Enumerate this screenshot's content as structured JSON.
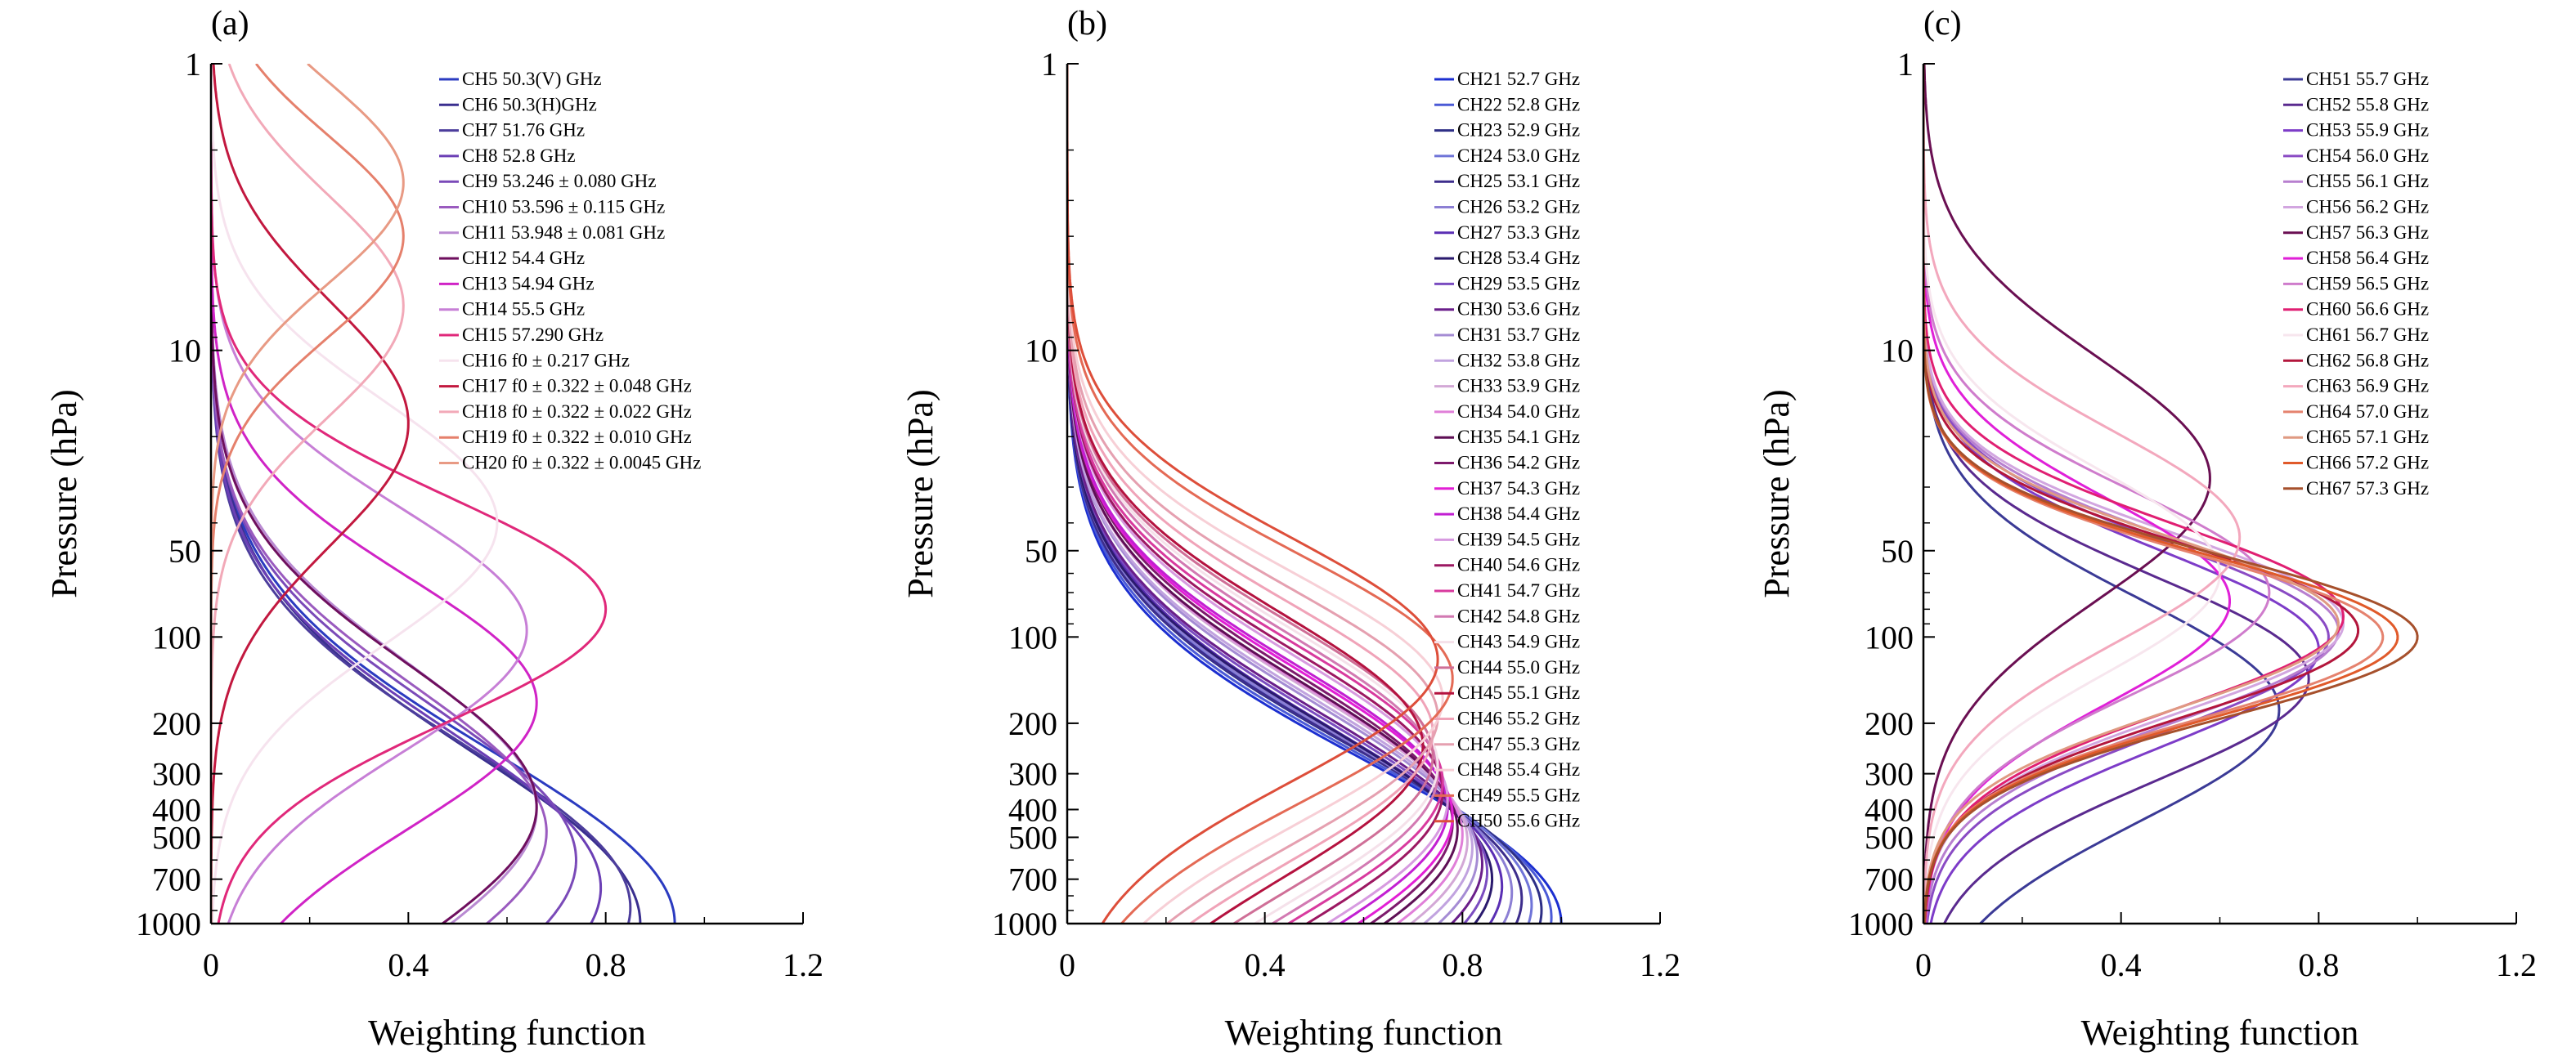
{
  "chart_data": [
    {
      "type": "line",
      "panel_label": "(a)",
      "xlabel": "Weighting function",
      "ylabel": "Pressure (hPa)",
      "xlim": [
        0,
        1.2
      ],
      "ylim": [
        1000,
        1
      ],
      "yscale": "log",
      "yreverse": true,
      "xticks": [
        "0",
        "0.4",
        "0.8",
        "1.2"
      ],
      "yticks": [
        "1",
        "10",
        "50",
        "100",
        "200",
        "300",
        "400",
        "500",
        "700",
        "1000"
      ],
      "ytick_values": [
        1,
        10,
        50,
        100,
        200,
        300,
        400,
        500,
        700,
        1000
      ],
      "legend_position": "top-right",
      "series": [
        {
          "name": "CH5 50.3(V) GHz",
          "color": "#2b3bc0",
          "peak_p": 1000,
          "peak_w": 0.94,
          "width": 0.85
        },
        {
          "name": "CH6 50.3(H)GHz",
          "color": "#3a2f8f",
          "peak_p": 1000,
          "peak_w": 0.87,
          "width": 0.85
        },
        {
          "name": "CH7 51.76 GHz",
          "color": "#4c3d9c",
          "peak_p": 880,
          "peak_w": 0.85,
          "width": 0.8
        },
        {
          "name": "CH8 52.8 GHz",
          "color": "#6b3fb5",
          "peak_p": 750,
          "peak_w": 0.79,
          "width": 0.78
        },
        {
          "name": "CH9 53.246 ± 0.080 GHz",
          "color": "#7a4ab8",
          "peak_p": 600,
          "peak_w": 0.74,
          "width": 0.76
        },
        {
          "name": "CH10 53.596 ± 0.115 GHz",
          "color": "#9a5bbf",
          "peak_p": 480,
          "peak_w": 0.68,
          "width": 0.72
        },
        {
          "name": "CH11 53.948 ± 0.081 GHz",
          "color": "#b98ad2",
          "peak_p": 400,
          "peak_w": 0.66,
          "width": 0.72
        },
        {
          "name": "CH12 54.4 GHz",
          "color": "#6e0f5e",
          "peak_p": 390,
          "peak_w": 0.66,
          "width": 0.7
        },
        {
          "name": "CH13 54.94 GHz",
          "color": "#d023c6",
          "peak_p": 170,
          "peak_w": 0.66,
          "width": 0.62
        },
        {
          "name": "CH14 55.5 GHz",
          "color": "#c77fd6",
          "peak_p": 95,
          "peak_w": 0.64,
          "width": 0.6
        },
        {
          "name": "CH15 57.290 GHz",
          "color": "#e0287a",
          "peak_p": 80,
          "peak_w": 0.8,
          "width": 0.55
        },
        {
          "name": "CH16 f0 ± 0.217 GHz",
          "color": "#f6e3ee",
          "peak_p": 40,
          "peak_w": 0.58,
          "width": 0.6
        },
        {
          "name": "CH17 f0 ± 0.322 ± 0.048 GHz",
          "color": "#c2183f",
          "peak_p": 18,
          "peak_w": 0.4,
          "width": 0.6
        },
        {
          "name": "CH18 f0 ± 0.322 ± 0.022 GHz",
          "color": "#f2a9b8",
          "peak_p": 7,
          "peak_w": 0.39,
          "width": 0.55
        },
        {
          "name": "CH19 f0 ± 0.322 ± 0.010 GHz",
          "color": "#e5806c",
          "peak_p": 4,
          "peak_w": 0.39,
          "width": 0.5
        },
        {
          "name": "CH20 f0 ± 0.322 ± 0.0045 GHz",
          "color": "#e89a84",
          "peak_p": 2.6,
          "peak_w": 0.39,
          "width": 0.5
        }
      ]
    },
    {
      "type": "line",
      "panel_label": "(b)",
      "xlabel": "Weighting function",
      "ylabel": "Pressure (hPa)",
      "xlim": [
        0,
        1.2
      ],
      "ylim": [
        1000,
        1
      ],
      "yscale": "log",
      "yreverse": true,
      "xticks": [
        "0",
        "0.4",
        "0.8",
        "1.2"
      ],
      "yticks": [
        "1",
        "10",
        "50",
        "100",
        "200",
        "300",
        "400",
        "500",
        "700",
        "1000"
      ],
      "ytick_values": [
        1,
        10,
        50,
        100,
        200,
        300,
        400,
        500,
        700,
        1000
      ],
      "legend_position": "top-right",
      "series": [
        {
          "name": "CH21 52.7 GHz",
          "color": "#1c2fd0",
          "peak_p": 1000,
          "peak_w": 1.0,
          "width": 0.8
        },
        {
          "name": "CH22 52.8 GHz",
          "color": "#4b5ad6",
          "peak_p": 950,
          "peak_w": 0.98,
          "width": 0.8
        },
        {
          "name": "CH23 52.9 GHz",
          "color": "#2e2f86",
          "peak_p": 900,
          "peak_w": 0.96,
          "width": 0.8
        },
        {
          "name": "CH24 53.0 GHz",
          "color": "#6f74d8",
          "peak_p": 860,
          "peak_w": 0.94,
          "width": 0.8
        },
        {
          "name": "CH25 53.1 GHz",
          "color": "#3d2d8c",
          "peak_p": 820,
          "peak_w": 0.92,
          "width": 0.78
        },
        {
          "name": "CH26 53.2 GHz",
          "color": "#8c7fd4",
          "peak_p": 780,
          "peak_w": 0.9,
          "width": 0.78
        },
        {
          "name": "CH27 53.3 GHz",
          "color": "#5a2fb4",
          "peak_p": 740,
          "peak_w": 0.88,
          "width": 0.78
        },
        {
          "name": "CH28 53.4 GHz",
          "color": "#2a1a6e",
          "peak_p": 700,
          "peak_w": 0.86,
          "width": 0.76
        },
        {
          "name": "CH29 53.5 GHz",
          "color": "#7a4cc0",
          "peak_p": 660,
          "peak_w": 0.85,
          "width": 0.76
        },
        {
          "name": "CH30 53.6 GHz",
          "color": "#6a1f8a",
          "peak_p": 620,
          "peak_w": 0.84,
          "width": 0.75
        },
        {
          "name": "CH31 53.7 GHz",
          "color": "#a58cd4",
          "peak_p": 580,
          "peak_w": 0.83,
          "width": 0.75
        },
        {
          "name": "CH32 53.8 GHz",
          "color": "#c1a3df",
          "peak_p": 545,
          "peak_w": 0.82,
          "width": 0.74
        },
        {
          "name": "CH33 53.9 GHz",
          "color": "#d3a8d6",
          "peak_p": 515,
          "peak_w": 0.81,
          "width": 0.74
        },
        {
          "name": "CH34 54.0 GHz",
          "color": "#e07fd8",
          "peak_p": 490,
          "peak_w": 0.8,
          "width": 0.73
        },
        {
          "name": "CH35 54.1 GHz",
          "color": "#5e0f55",
          "peak_p": 470,
          "peak_w": 0.79,
          "width": 0.72
        },
        {
          "name": "CH36 54.2 GHz",
          "color": "#7d1a6c",
          "peak_p": 445,
          "peak_w": 0.78,
          "width": 0.72
        },
        {
          "name": "CH37 54.3 GHz",
          "color": "#e21fd5",
          "peak_p": 420,
          "peak_w": 0.78,
          "width": 0.71
        },
        {
          "name": "CH38 54.4 GHz",
          "color": "#c21fd2",
          "peak_p": 395,
          "peak_w": 0.77,
          "width": 0.7
        },
        {
          "name": "CH39 54.5 GHz",
          "color": "#d79ae0",
          "peak_p": 370,
          "peak_w": 0.77,
          "width": 0.7
        },
        {
          "name": "CH40 54.6 GHz",
          "color": "#9c1862",
          "peak_p": 345,
          "peak_w": 0.76,
          "width": 0.69
        },
        {
          "name": "CH41 54.7 GHz",
          "color": "#d83a9e",
          "peak_p": 320,
          "peak_w": 0.76,
          "width": 0.68
        },
        {
          "name": "CH42 54.8 GHz",
          "color": "#d279b2",
          "peak_p": 300,
          "peak_w": 0.75,
          "width": 0.68
        },
        {
          "name": "CH43 54.9 GHz",
          "color": "#f5e1ea",
          "peak_p": 280,
          "peak_w": 0.75,
          "width": 0.67
        },
        {
          "name": "CH44 55.0 GHz",
          "color": "#cf6f97",
          "peak_p": 260,
          "peak_w": 0.74,
          "width": 0.66
        },
        {
          "name": "CH45 55.1 GHz",
          "color": "#b4123f",
          "peak_p": 240,
          "peak_w": 0.72,
          "width": 0.65
        },
        {
          "name": "CH46 55.2 GHz",
          "color": "#f0a3b8",
          "peak_p": 215,
          "peak_w": 0.74,
          "width": 0.64
        },
        {
          "name": "CH47 55.3 GHz",
          "color": "#e5a0b0",
          "peak_p": 190,
          "peak_w": 0.75,
          "width": 0.63
        },
        {
          "name": "CH48 55.4 GHz",
          "color": "#f7cfd6",
          "peak_p": 165,
          "peak_w": 0.76,
          "width": 0.62
        },
        {
          "name": "CH49 55.5 GHz",
          "color": "#e46a55",
          "peak_p": 140,
          "peak_w": 0.78,
          "width": 0.61
        },
        {
          "name": "CH50 55.6 GHz",
          "color": "#dd4e3a",
          "peak_p": 120,
          "peak_w": 0.75,
          "width": 0.6
        }
      ]
    },
    {
      "type": "line",
      "panel_label": "(c)",
      "xlabel": "Weighting function",
      "ylabel": "Pressure (hPa)",
      "xlim": [
        0,
        1.2
      ],
      "ylim": [
        1000,
        1
      ],
      "yscale": "log",
      "yreverse": true,
      "xticks": [
        "0",
        "0.4",
        "0.8",
        "1.2"
      ],
      "yticks": [
        "1",
        "10",
        "50",
        "100",
        "200",
        "300",
        "400",
        "500",
        "700",
        "1000"
      ],
      "ytick_values": [
        1,
        10,
        50,
        100,
        200,
        300,
        400,
        500,
        700,
        1000
      ],
      "legend_position": "top-right",
      "series": [
        {
          "name": "CH51 55.7 GHz",
          "color": "#3b3a96",
          "peak_p": 180,
          "peak_w": 0.72,
          "width": 0.55
        },
        {
          "name": "CH52 55.8 GHz",
          "color": "#5a2a8f",
          "peak_p": 140,
          "peak_w": 0.78,
          "width": 0.5
        },
        {
          "name": "CH53 55.9 GHz",
          "color": "#7d3cc8",
          "peak_p": 110,
          "peak_w": 0.8,
          "width": 0.48
        },
        {
          "name": "CH54 56.0 GHz",
          "color": "#8a4bc4",
          "peak_p": 100,
          "peak_w": 0.82,
          "width": 0.46
        },
        {
          "name": "CH55 56.1 GHz",
          "color": "#b77fcf",
          "peak_p": 95,
          "peak_w": 0.84,
          "width": 0.45
        },
        {
          "name": "CH56 56.2 GHz",
          "color": "#d2a6e0",
          "peak_p": 90,
          "peak_w": 0.85,
          "width": 0.44
        },
        {
          "name": "CH57 56.3 GHz",
          "color": "#6a0f52",
          "peak_p": 28,
          "peak_w": 0.58,
          "width": 0.6
        },
        {
          "name": "CH58 56.4 GHz",
          "color": "#e020d8",
          "peak_p": 75,
          "peak_w": 0.62,
          "width": 0.5
        },
        {
          "name": "CH59 56.5 GHz",
          "color": "#cf7ccc",
          "peak_p": 70,
          "peak_w": 0.7,
          "width": 0.5
        },
        {
          "name": "CH60 56.6 GHz",
          "color": "#e01f72",
          "peak_p": 85,
          "peak_w": 0.85,
          "width": 0.45
        },
        {
          "name": "CH61 56.7 GHz",
          "color": "#f7e6ee",
          "peak_p": 60,
          "peak_w": 0.6,
          "width": 0.5
        },
        {
          "name": "CH62 56.8 GHz",
          "color": "#b3163c",
          "peak_p": 95,
          "peak_w": 0.88,
          "width": 0.42
        },
        {
          "name": "CH63 56.9 GHz",
          "color": "#f3a8bd",
          "peak_p": 45,
          "peak_w": 0.64,
          "width": 0.52
        },
        {
          "name": "CH64 57.0 GHz",
          "color": "#e5826e",
          "peak_p": 100,
          "peak_w": 0.93,
          "width": 0.4
        },
        {
          "name": "CH65 57.1 GHz",
          "color": "#df9a82",
          "peak_p": 90,
          "peak_w": 0.84,
          "width": 0.42
        },
        {
          "name": "CH66 57.2 GHz",
          "color": "#e05a2a",
          "peak_p": 100,
          "peak_w": 0.96,
          "width": 0.4
        },
        {
          "name": "CH67 57.3 GHz",
          "color": "#a6502c",
          "peak_p": 100,
          "peak_w": 1.0,
          "width": 0.4
        }
      ]
    }
  ]
}
